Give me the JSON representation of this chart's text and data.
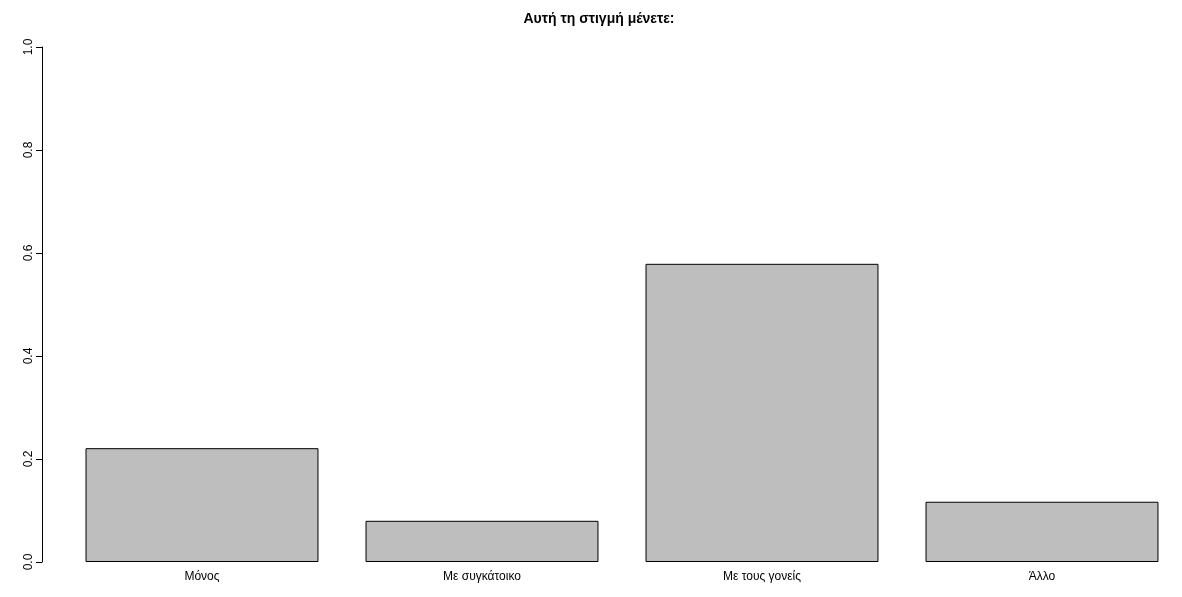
{
  "chart_data": {
    "type": "bar",
    "title": "Αυτή τη στιγμή μένετε:",
    "categories": [
      "Μόνος",
      "Με συγκάτοικο",
      "Με τους γονείς",
      "Άλλο"
    ],
    "values": [
      0.221,
      0.08,
      0.579,
      0.117
    ],
    "color": "#bebebe",
    "ylim": [
      0,
      1
    ],
    "yticks": [
      {
        "value": 0,
        "label": "0.0"
      },
      0.2,
      0.4,
      0.6,
      0.8,
      {
        "value": 1,
        "label": "1.0"
      }
    ],
    "grid": false
  }
}
